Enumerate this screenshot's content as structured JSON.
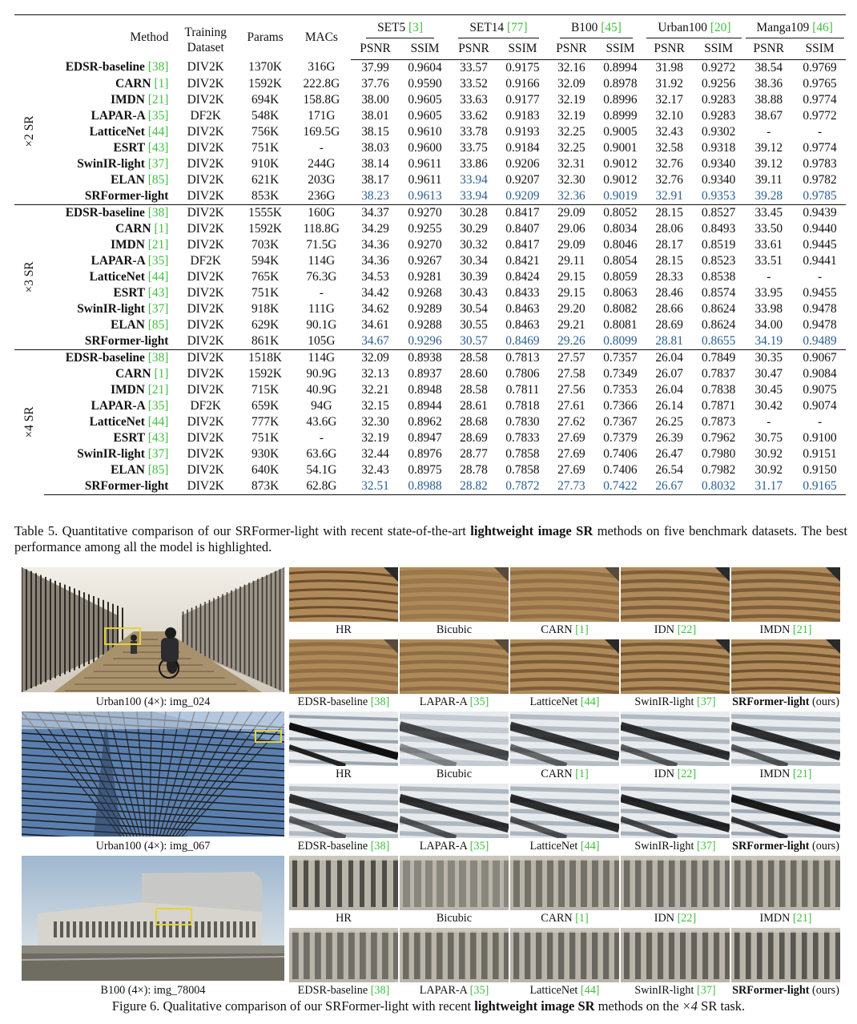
{
  "table": {
    "headers": {
      "method": "Method",
      "training_line1": "Training",
      "training_line2": "Dataset",
      "params": "Params",
      "macs": "MACs",
      "psnr": "PSNR",
      "ssim": "SSIM",
      "datasets": [
        {
          "name": "SET5",
          "ref": "[3]"
        },
        {
          "name": "SET14",
          "ref": "[77]"
        },
        {
          "name": "B100",
          "ref": "[45]"
        },
        {
          "name": "Urban100",
          "ref": "[20]"
        },
        {
          "name": "Manga109",
          "ref": "[46]"
        }
      ]
    },
    "groups": [
      {
        "label": "×2 SR",
        "rows": [
          {
            "method": "EDSR-baseline",
            "ref": "[38]",
            "train": "DIV2K",
            "params": "1370K",
            "macs": "316G",
            "vals": [
              "37.99",
              "0.9604",
              "33.57",
              "0.9175",
              "32.16",
              "0.8994",
              "31.98",
              "0.9272",
              "38.54",
              "0.9769"
            ],
            "best": []
          },
          {
            "method": "CARN",
            "ref": "[1]",
            "train": "DIV2K",
            "params": "1592K",
            "macs": "222.8G",
            "vals": [
              "37.76",
              "0.9590",
              "33.52",
              "0.9166",
              "32.09",
              "0.8978",
              "31.92",
              "0.9256",
              "38.36",
              "0.9765"
            ],
            "best": []
          },
          {
            "method": "IMDN",
            "ref": "[21]",
            "train": "DIV2K",
            "params": "694K",
            "macs": "158.8G",
            "vals": [
              "38.00",
              "0.9605",
              "33.63",
              "0.9177",
              "32.19",
              "0.8996",
              "32.17",
              "0.9283",
              "38.88",
              "0.9774"
            ],
            "best": []
          },
          {
            "method": "LAPAR-A",
            "ref": "[35]",
            "train": "DF2K",
            "params": "548K",
            "macs": "171G",
            "vals": [
              "38.01",
              "0.9605",
              "33.62",
              "0.9183",
              "32.19",
              "0.8999",
              "32.10",
              "0.9283",
              "38.67",
              "0.9772"
            ],
            "best": []
          },
          {
            "method": "LatticeNet",
            "ref": "[44]",
            "train": "DIV2K",
            "params": "756K",
            "macs": "169.5G",
            "vals": [
              "38.15",
              "0.9610",
              "33.78",
              "0.9193",
              "32.25",
              "0.9005",
              "32.43",
              "0.9302",
              "-",
              "-"
            ],
            "best": []
          },
          {
            "method": "ESRT",
            "ref": "[43]",
            "train": "DIV2K",
            "params": "751K",
            "macs": "-",
            "vals": [
              "38.03",
              "0.9600",
              "33.75",
              "0.9184",
              "32.25",
              "0.9001",
              "32.58",
              "0.9318",
              "39.12",
              "0.9774"
            ],
            "best": []
          },
          {
            "method": "SwinIR-light",
            "ref": "[37]",
            "train": "DIV2K",
            "params": "910K",
            "macs": "244G",
            "vals": [
              "38.14",
              "0.9611",
              "33.86",
              "0.9206",
              "32.31",
              "0.9012",
              "32.76",
              "0.9340",
              "39.12",
              "0.9783"
            ],
            "best": []
          },
          {
            "method": "ELAN",
            "ref": "[85]",
            "train": "DIV2K",
            "params": "621K",
            "macs": "203G",
            "vals": [
              "38.17",
              "0.9611",
              "33.94",
              "0.9207",
              "32.30",
              "0.9012",
              "32.76",
              "0.9340",
              "39.11",
              "0.9782"
            ],
            "best": [
              2
            ]
          },
          {
            "method": "SRFormer-light",
            "ref": "",
            "train": "DIV2K",
            "params": "853K",
            "macs": "236G",
            "vals": [
              "38.23",
              "0.9613",
              "33.94",
              "0.9209",
              "32.36",
              "0.9019",
              "32.91",
              "0.9353",
              "39.28",
              "0.9785"
            ],
            "best": [
              0,
              1,
              2,
              3,
              4,
              5,
              6,
              7,
              8,
              9
            ]
          }
        ]
      },
      {
        "label": "×3 SR",
        "rows": [
          {
            "method": "EDSR-baseline",
            "ref": "[38]",
            "train": "DIV2K",
            "params": "1555K",
            "macs": "160G",
            "vals": [
              "34.37",
              "0.9270",
              "30.28",
              "0.8417",
              "29.09",
              "0.8052",
              "28.15",
              "0.8527",
              "33.45",
              "0.9439"
            ],
            "best": []
          },
          {
            "method": "CARN",
            "ref": "[1]",
            "train": "DIV2K",
            "params": "1592K",
            "macs": "118.8G",
            "vals": [
              "34.29",
              "0.9255",
              "30.29",
              "0.8407",
              "29.06",
              "0.8034",
              "28.06",
              "0.8493",
              "33.50",
              "0.9440"
            ],
            "best": []
          },
          {
            "method": "IMDN",
            "ref": "[21]",
            "train": "DIV2K",
            "params": "703K",
            "macs": "71.5G",
            "vals": [
              "34.36",
              "0.9270",
              "30.32",
              "0.8417",
              "29.09",
              "0.8046",
              "28.17",
              "0.8519",
              "33.61",
              "0.9445"
            ],
            "best": []
          },
          {
            "method": "LAPAR-A",
            "ref": "[35]",
            "train": "DF2K",
            "params": "594K",
            "macs": "114G",
            "vals": [
              "34.36",
              "0.9267",
              "30.34",
              "0.8421",
              "29.11",
              "0.8054",
              "28.15",
              "0.8523",
              "33.51",
              "0.9441"
            ],
            "best": []
          },
          {
            "method": "LatticeNet",
            "ref": "[44]",
            "train": "DIV2K",
            "params": "765K",
            "macs": "76.3G",
            "vals": [
              "34.53",
              "0.9281",
              "30.39",
              "0.8424",
              "29.15",
              "0.8059",
              "28.33",
              "0.8538",
              "-",
              "-"
            ],
            "best": []
          },
          {
            "method": "ESRT",
            "ref": "[43]",
            "train": "DIV2K",
            "params": "751K",
            "macs": "-",
            "vals": [
              "34.42",
              "0.9268",
              "30.43",
              "0.8433",
              "29.15",
              "0.8063",
              "28.46",
              "0.8574",
              "33.95",
              "0.9455"
            ],
            "best": []
          },
          {
            "method": "SwinIR-light",
            "ref": "[37]",
            "train": "DIV2K",
            "params": "918K",
            "macs": "111G",
            "vals": [
              "34.62",
              "0.9289",
              "30.54",
              "0.8463",
              "29.20",
              "0.8082",
              "28.66",
              "0.8624",
              "33.98",
              "0.9478"
            ],
            "best": []
          },
          {
            "method": "ELAN",
            "ref": "[85]",
            "train": "DIV2K",
            "params": "629K",
            "macs": "90.1G",
            "vals": [
              "34.61",
              "0.9288",
              "30.55",
              "0.8463",
              "29.21",
              "0.8081",
              "28.69",
              "0.8624",
              "34.00",
              "0.9478"
            ],
            "best": []
          },
          {
            "method": "SRFormer-light",
            "ref": "",
            "train": "DIV2K",
            "params": "861K",
            "macs": "105G",
            "vals": [
              "34.67",
              "0.9296",
              "30.57",
              "0.8469",
              "29.26",
              "0.8099",
              "28.81",
              "0.8655",
              "34.19",
              "0.9489"
            ],
            "best": [
              0,
              1,
              2,
              3,
              4,
              5,
              6,
              7,
              8,
              9
            ]
          }
        ]
      },
      {
        "label": "×4 SR",
        "rows": [
          {
            "method": "EDSR-baseline",
            "ref": "[38]",
            "train": "DIV2K",
            "params": "1518K",
            "macs": "114G",
            "vals": [
              "32.09",
              "0.8938",
              "28.58",
              "0.7813",
              "27.57",
              "0.7357",
              "26.04",
              "0.7849",
              "30.35",
              "0.9067"
            ],
            "best": []
          },
          {
            "method": "CARN",
            "ref": "[1]",
            "train": "DIV2K",
            "params": "1592K",
            "macs": "90.9G",
            "vals": [
              "32.13",
              "0.8937",
              "28.60",
              "0.7806",
              "27.58",
              "0.7349",
              "26.07",
              "0.7837",
              "30.47",
              "0.9084"
            ],
            "best": []
          },
          {
            "method": "IMDN",
            "ref": "[21]",
            "train": "DIV2K",
            "params": "715K",
            "macs": "40.9G",
            "vals": [
              "32.21",
              "0.8948",
              "28.58",
              "0.7811",
              "27.56",
              "0.7353",
              "26.04",
              "0.7838",
              "30.45",
              "0.9075"
            ],
            "best": []
          },
          {
            "method": "LAPAR-A",
            "ref": "[35]",
            "train": "DF2K",
            "params": "659K",
            "macs": "94G",
            "vals": [
              "32.15",
              "0.8944",
              "28.61",
              "0.7818",
              "27.61",
              "0.7366",
              "26.14",
              "0.7871",
              "30.42",
              "0.9074"
            ],
            "best": []
          },
          {
            "method": "LatticeNet",
            "ref": "[44]",
            "train": "DIV2K",
            "params": "777K",
            "macs": "43.6G",
            "vals": [
              "32.30",
              "0.8962",
              "28.68",
              "0.7830",
              "27.62",
              "0.7367",
              "26.25",
              "0.7873",
              "-",
              "-"
            ],
            "best": []
          },
          {
            "method": "ESRT",
            "ref": "[43]",
            "train": "DIV2K",
            "params": "751K",
            "macs": "-",
            "vals": [
              "32.19",
              "0.8947",
              "28.69",
              "0.7833",
              "27.69",
              "0.7379",
              "26.39",
              "0.7962",
              "30.75",
              "0.9100"
            ],
            "best": []
          },
          {
            "method": "SwinIR-light",
            "ref": "[37]",
            "train": "DIV2K",
            "params": "930K",
            "macs": "63.6G",
            "vals": [
              "32.44",
              "0.8976",
              "28.77",
              "0.7858",
              "27.69",
              "0.7406",
              "26.47",
              "0.7980",
              "30.92",
              "0.9151"
            ],
            "best": []
          },
          {
            "method": "ELAN",
            "ref": "[85]",
            "train": "DIV2K",
            "params": "640K",
            "macs": "54.1G",
            "vals": [
              "32.43",
              "0.8975",
              "28.78",
              "0.7858",
              "27.69",
              "0.7406",
              "26.54",
              "0.7982",
              "30.92",
              "0.9150"
            ],
            "best": []
          },
          {
            "method": "SRFormer-light",
            "ref": "",
            "train": "DIV2K",
            "params": "873K",
            "macs": "62.8G",
            "vals": [
              "32.51",
              "0.8988",
              "28.82",
              "0.7872",
              "27.73",
              "0.7422",
              "26.67",
              "0.8032",
              "31.17",
              "0.9165"
            ],
            "best": [
              0,
              1,
              2,
              3,
              4,
              5,
              6,
              7,
              8,
              9
            ]
          }
        ]
      }
    ]
  },
  "caption5": {
    "prefix": "Table 5. Quantitative comparison of our SRFormer-light with recent state-of-the-art ",
    "bold": "lightweight image SR",
    "suffix": " methods on five benchmark datasets. The best performance among all the model is highlighted."
  },
  "figure": {
    "rows": [
      {
        "scene": "bridge",
        "caption": "Urban100 (4×): img_024",
        "crops": [
          {
            "label": "HR",
            "ref": ""
          },
          {
            "label": "Bicubic",
            "ref": ""
          },
          {
            "label": "CARN",
            "ref": "[1]"
          },
          {
            "label": "IDN",
            "ref": "[22]"
          },
          {
            "label": "IMDN",
            "ref": "[21]"
          },
          {
            "label": "EDSR-baseline",
            "ref": "[38]"
          },
          {
            "label": "LAPAR-A",
            "ref": "[35]"
          },
          {
            "label": "LatticeNet",
            "ref": "[44]"
          },
          {
            "label": "SwinIR-light",
            "ref": "[37]"
          },
          {
            "label": "SRFormer-light",
            "ref": "(ours)"
          }
        ]
      },
      {
        "scene": "building",
        "caption": "Urban100 (4×): img_067",
        "crops": [
          {
            "label": "HR",
            "ref": ""
          },
          {
            "label": "Bicubic",
            "ref": ""
          },
          {
            "label": "CARN",
            "ref": "[1]"
          },
          {
            "label": "IDN",
            "ref": "[22]"
          },
          {
            "label": "IMDN",
            "ref": "[21]"
          },
          {
            "label": "EDSR-baseline",
            "ref": "[38]"
          },
          {
            "label": "LAPAR-A",
            "ref": "[35]"
          },
          {
            "label": "LatticeNet",
            "ref": "[44]"
          },
          {
            "label": "SwinIR-light",
            "ref": "[37]"
          },
          {
            "label": "SRFormer-light",
            "ref": "(ours)"
          }
        ]
      },
      {
        "scene": "hall",
        "caption": "B100 (4×): img_78004",
        "crops": [
          {
            "label": "HR",
            "ref": ""
          },
          {
            "label": "Bicubic",
            "ref": ""
          },
          {
            "label": "CARN",
            "ref": "[1]"
          },
          {
            "label": "IDN",
            "ref": "[22]"
          },
          {
            "label": "IMDN",
            "ref": "[21]"
          },
          {
            "label": "EDSR-baseline",
            "ref": "[38]"
          },
          {
            "label": "LAPAR-A",
            "ref": "[35]"
          },
          {
            "label": "LatticeNet",
            "ref": "[44]"
          },
          {
            "label": "SwinIR-light",
            "ref": "[37]"
          },
          {
            "label": "SRFormer-light",
            "ref": "(ours)"
          }
        ]
      }
    ]
  },
  "caption6": {
    "prefix": "Figure 6. Qualitative comparison of our SRFormer-light with recent ",
    "bold": "lightweight image SR",
    "middle": " methods on the ",
    "math": "×4",
    "suffix": " SR task."
  },
  "colors": {
    "best": "#2a5e8f",
    "cite": "#3fbf3f",
    "highlight_box": "#e6d23a"
  }
}
